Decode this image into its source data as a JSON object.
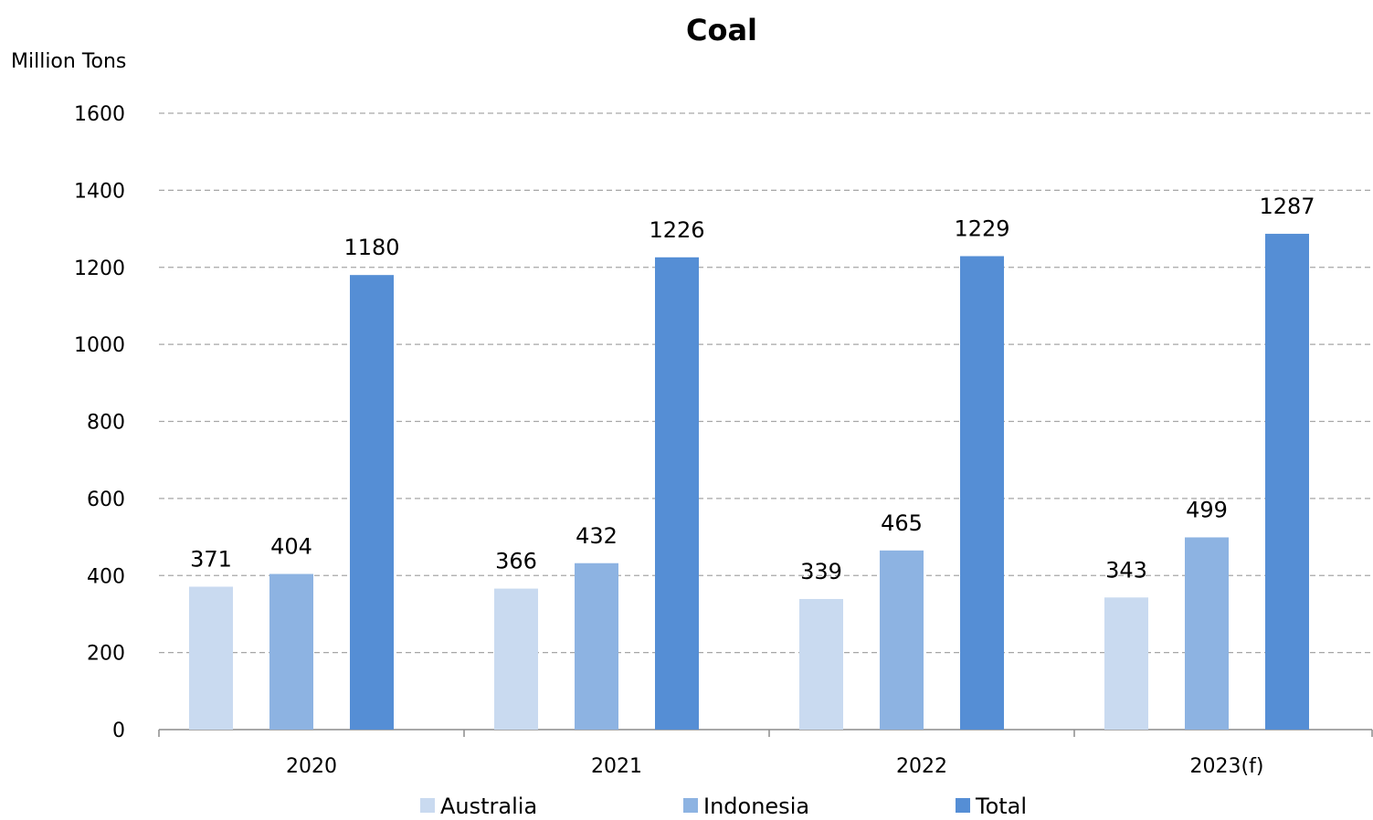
{
  "chart_data": {
    "type": "bar",
    "title": "Coal",
    "ylabel": "Million Tons",
    "xlabel": "",
    "categories": [
      "2020",
      "2021",
      "2022",
      "2023(f)"
    ],
    "series": [
      {
        "name": "Australia",
        "values": [
          371,
          366,
          339,
          343
        ],
        "color": "#c9daf0"
      },
      {
        "name": "Indonesia",
        "values": [
          404,
          432,
          465,
          499
        ],
        "color": "#8db3e2"
      },
      {
        "name": "Total",
        "values": [
          1180,
          1226,
          1229,
          1287
        ],
        "color": "#558ed5"
      }
    ],
    "ylim": [
      0,
      1600
    ],
    "yticks": [
      "0",
      "200",
      "400",
      "600",
      "800",
      "1000",
      "1200",
      "1400",
      "1600"
    ],
    "grid": true,
    "grid_style": "dashed",
    "legend_position": "bottom",
    "data_labels": true
  }
}
